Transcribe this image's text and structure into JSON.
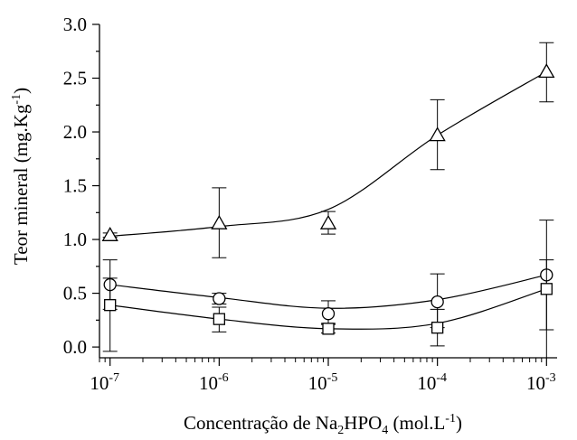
{
  "chart_data": {
    "type": "scatter",
    "title": "",
    "xlabel": {
      "prefix": "Concentração de Na",
      "sub1": "2",
      "mid": "HPO",
      "sub2": "4",
      "suffix": " (mol.L",
      "sup": "-1",
      "end": ")"
    },
    "ylabel": {
      "main": "Teor mineral (mg.Kg",
      "sup": "-1",
      "end": ")"
    },
    "x_scale": "log",
    "x_ticks": [
      {
        "value": 1e-07,
        "base": "10",
        "exp": "-7"
      },
      {
        "value": 1e-06,
        "base": "10",
        "exp": "-6"
      },
      {
        "value": 1e-05,
        "base": "10",
        "exp": "-5"
      },
      {
        "value": 0.0001,
        "base": "10",
        "exp": "-4"
      },
      {
        "value": 0.001,
        "base": "10",
        "exp": "-3"
      }
    ],
    "xlim": [
      8e-08,
      0.00125
    ],
    "ylim": [
      -0.1,
      3.0
    ],
    "y_ticks": [
      "0.0",
      "0.5",
      "1.0",
      "1.5",
      "2.0",
      "2.5",
      "3.0"
    ],
    "y_tick_values": [
      0.0,
      0.5,
      1.0,
      1.5,
      2.0,
      2.5,
      3.0
    ],
    "x": [
      1e-07,
      1e-06,
      1e-05,
      0.0001,
      0.001
    ],
    "series": [
      {
        "marker": "triangle",
        "values": [
          1.04,
          1.15,
          1.15,
          1.97,
          2.56
        ],
        "err_low": [
          1.02,
          0.83,
          1.05,
          1.65,
          2.28
        ],
        "err_high": [
          1.06,
          1.48,
          1.26,
          2.3,
          2.83
        ],
        "fit": [
          1.03,
          1.12,
          1.28,
          1.97,
          2.56
        ]
      },
      {
        "marker": "circle",
        "values": [
          0.58,
          0.45,
          0.31,
          0.42,
          0.67
        ],
        "err_low": [
          0.35,
          0.4,
          0.22,
          0.18,
          0.16
        ],
        "err_high": [
          0.81,
          0.5,
          0.43,
          0.68,
          1.18
        ],
        "fit": [
          0.58,
          0.46,
          0.36,
          0.44,
          0.67
        ]
      },
      {
        "marker": "square",
        "values": [
          0.39,
          0.26,
          0.17,
          0.18,
          0.54
        ],
        "err_low": [
          -0.04,
          0.14,
          0.13,
          0.01,
          -0.1
        ],
        "err_high": [
          0.64,
          0.37,
          0.21,
          0.35,
          0.81
        ],
        "fit": [
          0.39,
          0.26,
          0.17,
          0.22,
          0.54
        ]
      }
    ],
    "grid": false,
    "legend": "none"
  }
}
